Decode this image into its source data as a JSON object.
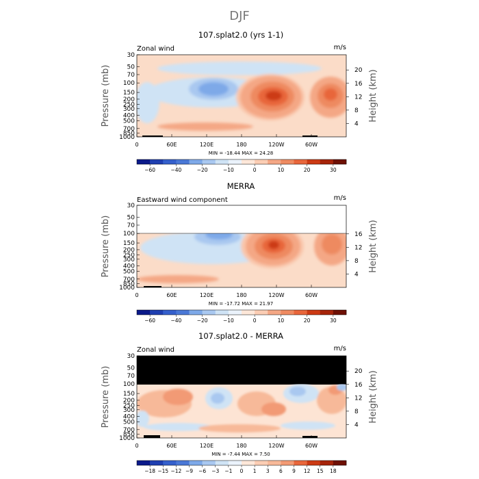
{
  "figure_title": "DJF",
  "chart_data": [
    {
      "type": "heatmap",
      "title": "107.splat2.0 (yrs 1-1)",
      "left_label": "Zonal wind",
      "right_label": "m/s",
      "ylabel": "Pressure (mb)",
      "ylabel_right": "Height (km)",
      "y_ticks": [
        "30",
        "50",
        "70",
        "100",
        "150",
        "200",
        "250",
        "300",
        "400",
        "500",
        "700",
        "850",
        "1000"
      ],
      "height_ticks": [
        "20",
        "16",
        "12",
        "8",
        "4"
      ],
      "x_ticks": [
        "0",
        "60E",
        "120E",
        "180",
        "120W",
        "60W"
      ],
      "ylim_mb": [
        1000,
        30
      ],
      "stats": "MIN = -18.44   MAX =  24.28",
      "colorbar_labels": [
        "-60",
        "-40",
        "-20",
        "-10",
        "0",
        "10",
        "20",
        "30"
      ],
      "features": [
        {
          "name": "easterly jet",
          "lon": 75,
          "p_mb": 120,
          "value": -18
        },
        {
          "name": "westerly jet",
          "lon": 225,
          "p_mb": 190,
          "value": 24
        },
        {
          "name": "westerly jet",
          "lon": 310,
          "p_mb": 190,
          "value": 20
        }
      ]
    },
    {
      "type": "heatmap",
      "title": "MERRA",
      "left_label": "Eastward wind component",
      "right_label": "m/s",
      "ylabel": "Pressure (mb)",
      "ylabel_right": "Height (km)",
      "y_ticks": [
        "30",
        "50",
        "70",
        "100",
        "150",
        "200",
        "250",
        "300",
        "400",
        "500",
        "700",
        "850",
        "1000"
      ],
      "height_ticks": [
        "16",
        "12",
        "8",
        "4"
      ],
      "x_ticks": [
        "0",
        "60E",
        "120E",
        "180",
        "120W",
        "60W"
      ],
      "ylim_mb": [
        1000,
        30
      ],
      "data_top_mb": 100,
      "stats": "MIN = -17.72   MAX =  21.97",
      "colorbar_labels": [
        "-60",
        "-40",
        "-20",
        "-10",
        "0",
        "10",
        "20",
        "30"
      ],
      "features": [
        {
          "name": "easterly jet",
          "lon": 95,
          "p_mb": 110,
          "value": -17
        },
        {
          "name": "westerly jet",
          "lon": 225,
          "p_mb": 190,
          "value": 22
        },
        {
          "name": "westerly jet",
          "lon": 320,
          "p_mb": 190,
          "value": 18
        }
      ]
    },
    {
      "type": "heatmap",
      "title": "107.splat2.0 - MERRA",
      "left_label": "Zonal wind",
      "right_label": "m/s",
      "ylabel": "Pressure (mb)",
      "ylabel_right": "Height (km)",
      "y_ticks": [
        "30",
        "50",
        "70",
        "100",
        "150",
        "200",
        "250",
        "300",
        "400",
        "500",
        "700",
        "850",
        "1000"
      ],
      "height_ticks": [
        "20",
        "16",
        "12",
        "8",
        "4"
      ],
      "x_ticks": [
        "0",
        "60E",
        "120E",
        "180",
        "120W",
        "60W"
      ],
      "ylim_mb": [
        1000,
        30
      ],
      "masked_above_mb": 100,
      "stats": "MIN =  -7.44   MAX =   7.50",
      "colorbar_labels": [
        "-18",
        "-15",
        "-12",
        "-9",
        "-6",
        "-3",
        "-1",
        "0",
        "1",
        "3",
        "6",
        "9",
        "12",
        "15",
        "18"
      ],
      "features": [
        {
          "name": "positive difference",
          "lon": 60,
          "p_mb": 250,
          "value": 6
        },
        {
          "name": "negative difference",
          "lon": 120,
          "p_mb": 300,
          "value": -4
        },
        {
          "name": "positive difference",
          "lon": 200,
          "p_mb": 350,
          "value": 5
        },
        {
          "name": "negative difference",
          "lon": 250,
          "p_mb": 150,
          "value": -6
        },
        {
          "name": "positive difference",
          "lon": 330,
          "p_mb": 250,
          "value": 6
        }
      ]
    }
  ],
  "colors": {
    "light_blue": "#cfe3f5",
    "mid_blue": "#7ea9e8",
    "dark_blue": "#4a78d6",
    "peach": "#fbdcc8",
    "salmon": "#f4a785",
    "orange_red": "#e8663b",
    "dark_red": "#cc3a14"
  }
}
